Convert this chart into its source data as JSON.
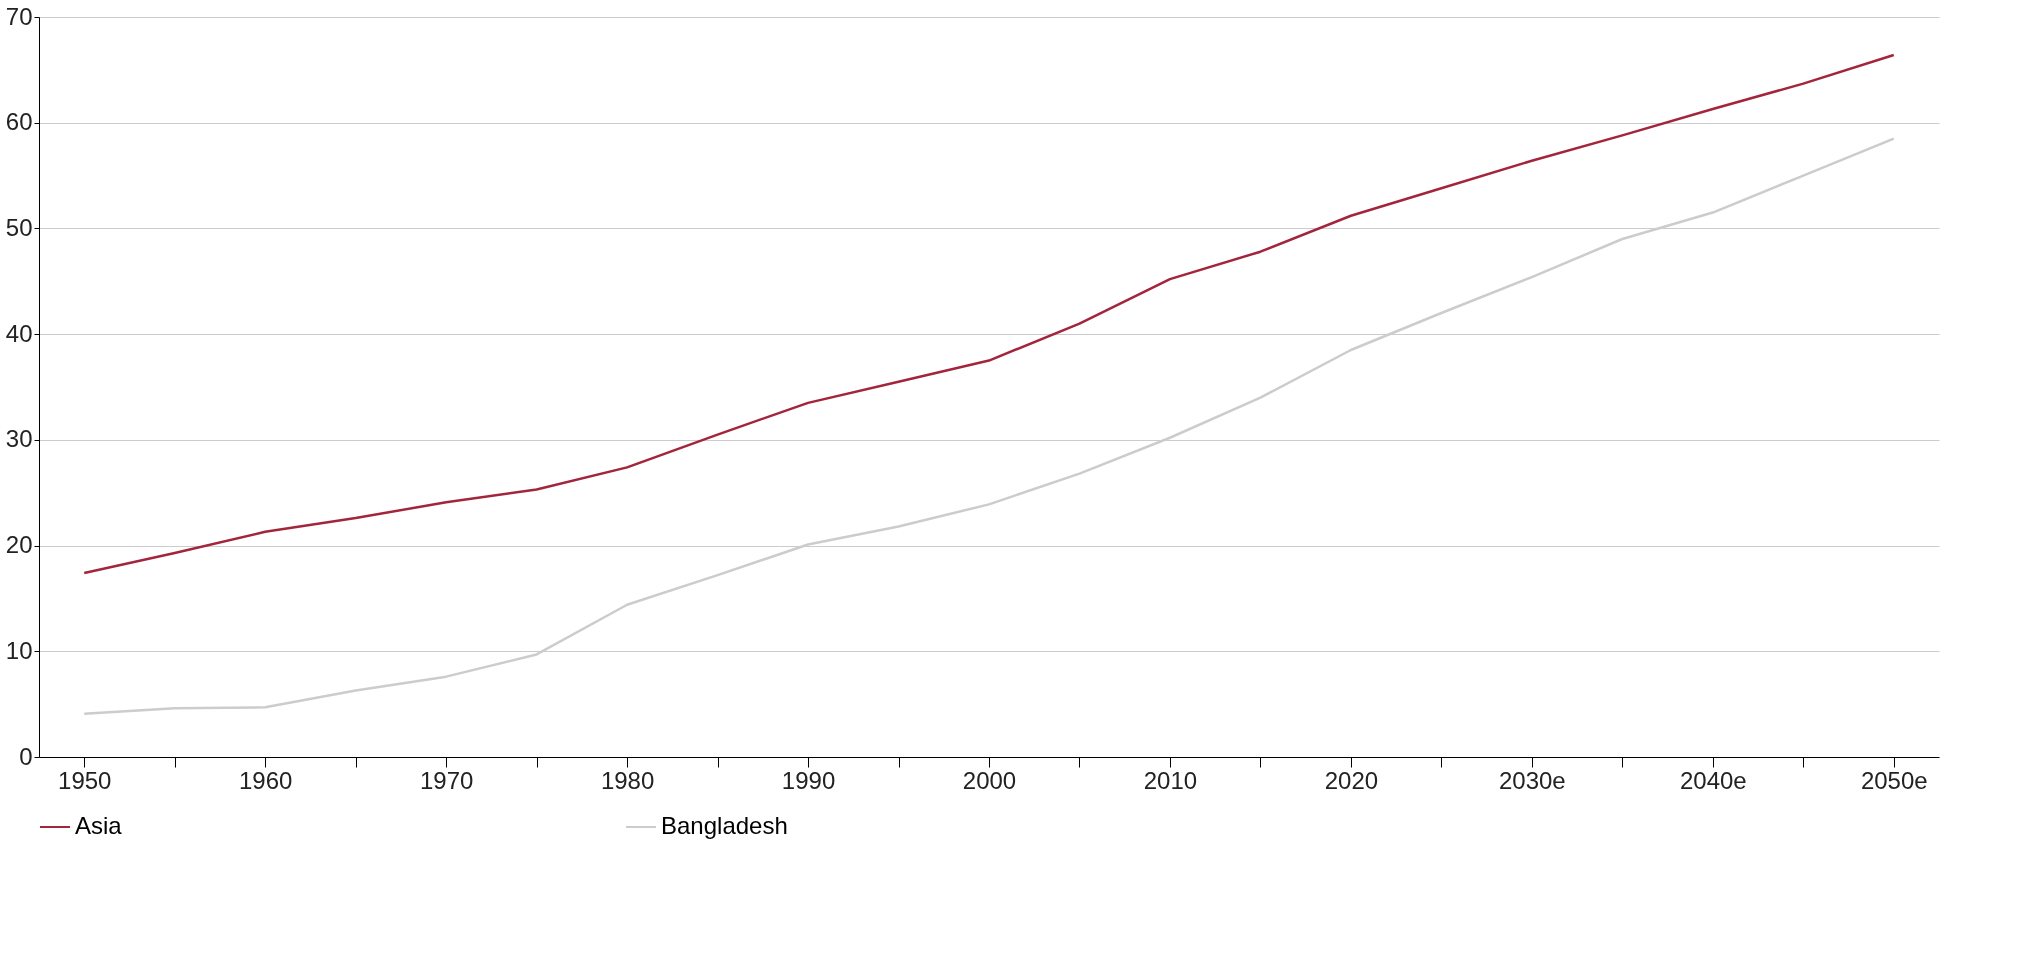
{
  "chart_data": {
    "type": "line",
    "categories": [
      "1950",
      null,
      "1960",
      null,
      "1970",
      null,
      "1980",
      null,
      "1990",
      null,
      "2000",
      null,
      "2010",
      null,
      "2020",
      null,
      "2030e",
      null,
      "2040e",
      null,
      "2050e"
    ],
    "series": [
      {
        "name": "Asia",
        "color": "#a3253b",
        "values": [
          17.4,
          19.3,
          21.3,
          22.6,
          24.1,
          25.3,
          27.4,
          30.5,
          33.5,
          35.5,
          37.5,
          41,
          45.2,
          47.8,
          51.2,
          53.8,
          56.4,
          58.8,
          61.3,
          63.7,
          66.4
        ]
      },
      {
        "name": "Bangladesh",
        "color": "#cccccc",
        "values": [
          4.1,
          4.6,
          4.7,
          6.3,
          7.6,
          9.7,
          14.4,
          17.2,
          20.1,
          21.8,
          23.9,
          26.8,
          30.2,
          34,
          38.5,
          42,
          45.4,
          49,
          51.5,
          55,
          58.5
        ]
      }
    ],
    "ylim": [
      0,
      70
    ],
    "yticks": [
      0,
      10,
      20,
      30,
      40,
      50,
      60,
      70
    ],
    "grid": "y",
    "legend": "bottom",
    "line_style": "solid"
  }
}
